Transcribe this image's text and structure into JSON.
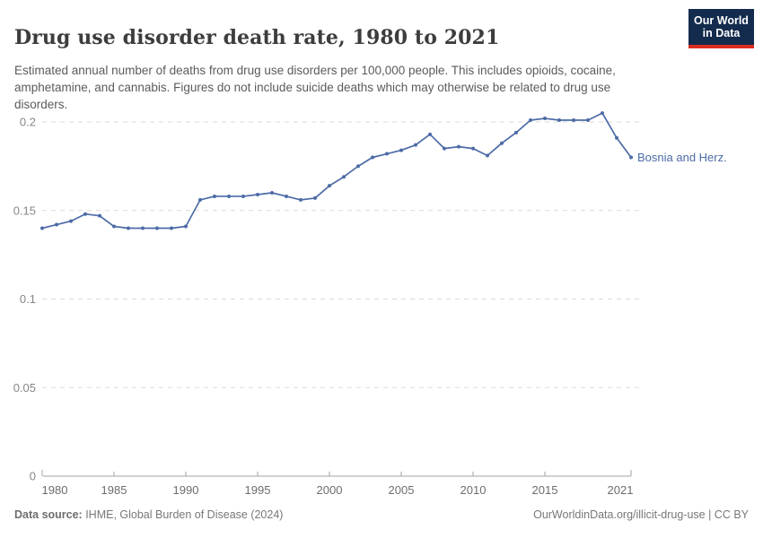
{
  "header": {
    "title": "Drug use disorder death rate, 1980 to 2021",
    "subtitle": "Estimated annual number of deaths from drug use disorders per 100,000 people. This includes opioids, cocaine, amphetamine, and cannabis. Figures do not include suicide deaths which may otherwise be related to drug use disorders.",
    "logo": {
      "line1": "Our World",
      "line2": "in Data",
      "bg": "#132b4d",
      "accent": "#dc2d20"
    }
  },
  "chart_data": {
    "type": "line",
    "title": "Drug use disorder death rate, 1980 to 2021",
    "xlabel": "",
    "ylabel": "",
    "xlim": [
      1980,
      2021
    ],
    "ylim": [
      0,
      0.2
    ],
    "grid": "dashed-horizontal",
    "legend_position": "end-of-line-label",
    "x_ticks": [
      1980,
      1985,
      1990,
      1995,
      2000,
      2005,
      2010,
      2015,
      2021
    ],
    "y_ticks": [
      0,
      0.05,
      0.1,
      0.15,
      0.2
    ],
    "series": [
      {
        "name": "Bosnia and Herz.",
        "color": "#4c6ba6",
        "x": [
          1980,
          1981,
          1982,
          1983,
          1984,
          1985,
          1986,
          1987,
          1988,
          1989,
          1990,
          1991,
          1992,
          1993,
          1994,
          1995,
          1996,
          1997,
          1998,
          1999,
          2000,
          2001,
          2002,
          2003,
          2004,
          2005,
          2006,
          2007,
          2008,
          2009,
          2010,
          2011,
          2012,
          2013,
          2014,
          2015,
          2016,
          2017,
          2018,
          2019,
          2020,
          2021
        ],
        "values": [
          0.14,
          0.142,
          0.144,
          0.148,
          0.147,
          0.141,
          0.14,
          0.14,
          0.14,
          0.14,
          0.141,
          0.156,
          0.158,
          0.158,
          0.158,
          0.159,
          0.16,
          0.158,
          0.156,
          0.157,
          0.164,
          0.169,
          0.175,
          0.18,
          0.182,
          0.184,
          0.187,
          0.193,
          0.185,
          0.186,
          0.185,
          0.181,
          0.188,
          0.194,
          0.201,
          0.202,
          0.201,
          0.201,
          0.201,
          0.205,
          0.191,
          0.18
        ]
      }
    ]
  },
  "footer": {
    "source_label": "Data source:",
    "source_text": " IHME, Global Burden of Disease (2024)",
    "right_text": "OurWorldinData.org/illicit-drug-use | CC BY"
  }
}
